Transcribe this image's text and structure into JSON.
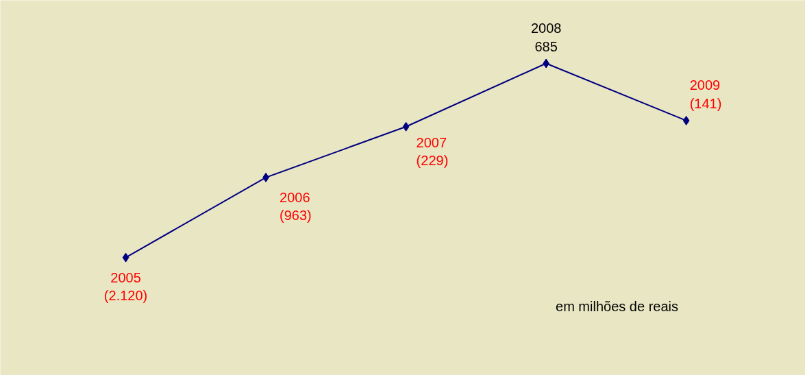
{
  "chart_data": {
    "type": "line",
    "categories": [
      "2005",
      "2006",
      "2007",
      "2008",
      "2009"
    ],
    "series": [
      {
        "color": "#000080",
        "values": [
          -2120,
          -963,
          -229,
          685,
          -141
        ],
        "value_labels": [
          "(2.120)",
          "(963)",
          "(229)",
          "685",
          "(141)"
        ]
      }
    ],
    "marker": "diamond",
    "annotations": [
      {
        "text": "em milhões de reais"
      }
    ]
  }
}
